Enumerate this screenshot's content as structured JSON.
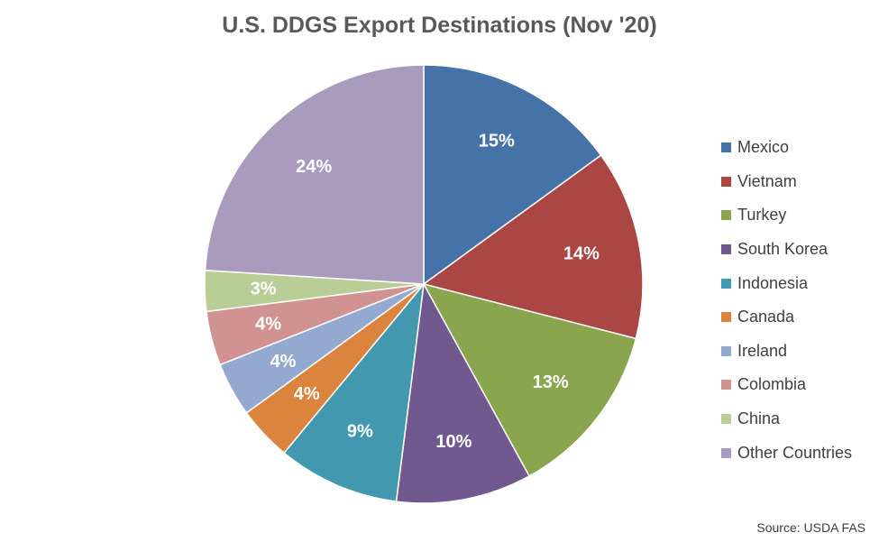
{
  "chart_data": {
    "type": "pie",
    "title": "U.S. DDGS Export Destinations (Nov '20)",
    "slices": [
      {
        "name": "Mexico",
        "value": 15,
        "label": "15%",
        "color": "#4572A7"
      },
      {
        "name": "Vietnam",
        "value": 14,
        "label": "14%",
        "color": "#AA4643"
      },
      {
        "name": "Turkey",
        "value": 13,
        "label": "13%",
        "color": "#89A54E"
      },
      {
        "name": "South Korea",
        "value": 10,
        "label": "10%",
        "color": "#71588F"
      },
      {
        "name": "Indonesia",
        "value": 9,
        "label": "9%",
        "color": "#4198AF"
      },
      {
        "name": "Canada",
        "value": 4,
        "label": "4%",
        "color": "#DB843D"
      },
      {
        "name": "Ireland",
        "value": 4,
        "label": "4%",
        "color": "#93A9CF"
      },
      {
        "name": "Colombia",
        "value": 4,
        "label": "4%",
        "color": "#D19392"
      },
      {
        "name": "China",
        "value": 3,
        "label": "3%",
        "color": "#B9CD96"
      },
      {
        "name": "Other Countries",
        "value": 24,
        "label": "24%",
        "color": "#A99BBD"
      }
    ],
    "legend_position": "right",
    "source": "Source: USDA FAS"
  }
}
